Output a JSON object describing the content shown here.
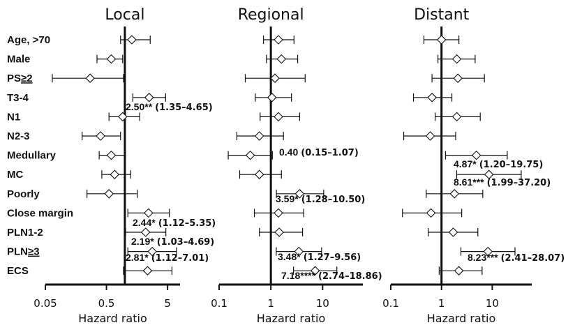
{
  "chart_data": {
    "type": "forest",
    "row_labels": [
      {
        "text": "Age, >70"
      },
      {
        "text": "Male"
      },
      {
        "text": "PS",
        "underlined": "≥2"
      },
      {
        "text": "T3-4"
      },
      {
        "text": "N1"
      },
      {
        "text": "N2-3"
      },
      {
        "text": "Medullary"
      },
      {
        "text": "MC"
      },
      {
        "text": "Poorly"
      },
      {
        "text": "Close margin"
      },
      {
        "text": "PLN1-2"
      },
      {
        "text": "PLN",
        "underlined": "≥3"
      },
      {
        "text": "ECS"
      }
    ],
    "panels": [
      {
        "title": "Local",
        "xlabel": "Hazard ratio",
        "xscale": "log",
        "xlim": [
          0.05,
          8
        ],
        "reference": 1,
        "ticks": [
          {
            "value": 0.05,
            "label": "0.05"
          },
          {
            "value": 0.5,
            "label": "0.5"
          },
          {
            "value": 5,
            "label": "5"
          }
        ],
        "estimates": [
          {
            "hr": 1.3,
            "lo": 0.85,
            "hi": 2.6
          },
          {
            "hr": 0.6,
            "lo": 0.35,
            "hi": 0.92
          },
          {
            "hr": 0.27,
            "lo": 0.065,
            "hi": 0.95
          },
          {
            "hr": 2.5,
            "lo": 1.35,
            "hi": 4.65
          },
          {
            "hr": 0.92,
            "lo": 0.55,
            "hi": 1.75
          },
          {
            "hr": 0.4,
            "lo": 0.2,
            "hi": 0.85
          },
          {
            "hr": 0.6,
            "lo": 0.38,
            "hi": 1.02
          },
          {
            "hr": 0.68,
            "lo": 0.42,
            "hi": 1.25
          },
          {
            "hr": 0.55,
            "lo": 0.24,
            "hi": 1.6
          },
          {
            "hr": 2.44,
            "lo": 1.12,
            "hi": 5.35
          },
          {
            "hr": 2.19,
            "lo": 1.03,
            "hi": 4.69
          },
          {
            "hr": 2.81,
            "lo": 1.12,
            "hi": 7.01
          },
          {
            "hr": 2.35,
            "lo": 0.95,
            "hi": 5.9
          }
        ],
        "annotations": [
          {
            "row": 3,
            "main": "2.50**",
            "ci": "(1.35–4.65)"
          },
          {
            "row": 9,
            "main": "2.44*",
            "ci": "(1.12–5.35)"
          },
          {
            "row": 10,
            "main": "2.19*",
            "ci": "(1.03–4.69)"
          },
          {
            "row": 11,
            "main": "2.81*",
            "ci": "(1.12–7.01)"
          }
        ]
      },
      {
        "title": "Regional",
        "xlabel": "Hazard ratio",
        "xscale": "log",
        "xlim": [
          0.1,
          60
        ],
        "reference": 1,
        "ticks": [
          {
            "value": 0.1,
            "label": "0.1"
          },
          {
            "value": 1,
            "label": "1"
          },
          {
            "value": 10,
            "label": "10"
          }
        ],
        "estimates": [
          {
            "hr": 1.4,
            "lo": 0.72,
            "hi": 2.8
          },
          {
            "hr": 1.6,
            "lo": 0.82,
            "hi": 3.3
          },
          {
            "hr": 1.2,
            "lo": 0.32,
            "hi": 4.6
          },
          {
            "hr": 1.05,
            "lo": 0.5,
            "hi": 2.5
          },
          {
            "hr": 1.4,
            "lo": 0.62,
            "hi": 3.6
          },
          {
            "hr": 0.6,
            "lo": 0.22,
            "hi": 1.75
          },
          {
            "hr": 0.4,
            "lo": 0.15,
            "hi": 1.07
          },
          {
            "hr": 0.6,
            "lo": 0.25,
            "hi": 1.6
          },
          {
            "hr": 3.59,
            "lo": 1.28,
            "hi": 10.5
          },
          {
            "hr": 1.4,
            "lo": 0.48,
            "hi": 4.3
          },
          {
            "hr": 1.45,
            "lo": 0.6,
            "hi": 4.1
          },
          {
            "hr": 3.48,
            "lo": 1.27,
            "hi": 9.56
          },
          {
            "hr": 7.18,
            "lo": 2.74,
            "hi": 18.86
          }
        ],
        "annotations": [
          {
            "row": 6,
            "main": "0.40",
            "ci": "(0.15–1.07)"
          },
          {
            "row": 8,
            "main": "3.59*",
            "ci": "(1.28–10.50)"
          },
          {
            "row": 11,
            "main": "3.48*",
            "ci": "(1.27–9.56)"
          },
          {
            "row": 12,
            "main": "7.18****",
            "ci": "(2.74–18.86)"
          }
        ]
      },
      {
        "title": "Distant",
        "xlabel": "Hazard ratio",
        "xscale": "log",
        "xlim": [
          0.1,
          60
        ],
        "reference": 1,
        "ticks": [
          {
            "value": 0.1,
            "label": "0.1"
          },
          {
            "value": 1,
            "label": "1"
          },
          {
            "value": 10,
            "label": "10"
          }
        ],
        "estimates": [
          {
            "hr": 1.0,
            "lo": 0.45,
            "hi": 2.2
          },
          {
            "hr": 2.0,
            "lo": 0.85,
            "hi": 4.6
          },
          {
            "hr": 2.1,
            "lo": 0.65,
            "hi": 7.0
          },
          {
            "hr": 0.65,
            "lo": 0.28,
            "hi": 1.6
          },
          {
            "hr": 2.0,
            "lo": 0.75,
            "hi": 5.8
          },
          {
            "hr": 0.6,
            "lo": 0.18,
            "hi": 1.9
          },
          {
            "hr": 4.87,
            "lo": 1.2,
            "hi": 19.75
          },
          {
            "hr": 8.61,
            "lo": 1.99,
            "hi": 37.2
          },
          {
            "hr": 1.8,
            "lo": 0.5,
            "hi": 6.5
          },
          {
            "hr": 0.62,
            "lo": 0.17,
            "hi": 2.5
          },
          {
            "hr": 1.7,
            "lo": 0.55,
            "hi": 5.2
          },
          {
            "hr": 8.23,
            "lo": 2.41,
            "hi": 28.07
          },
          {
            "hr": 2.2,
            "lo": 0.9,
            "hi": 6.3
          }
        ],
        "annotations": [
          {
            "row": 6,
            "main": "4.87*",
            "ci": "(1.20–19.75)"
          },
          {
            "row": 7,
            "main": "8.61***",
            "ci": "(1.99–37.20)"
          },
          {
            "row": 11,
            "main": "8.23***",
            "ci": "(2.41–28.07)"
          }
        ]
      }
    ]
  }
}
